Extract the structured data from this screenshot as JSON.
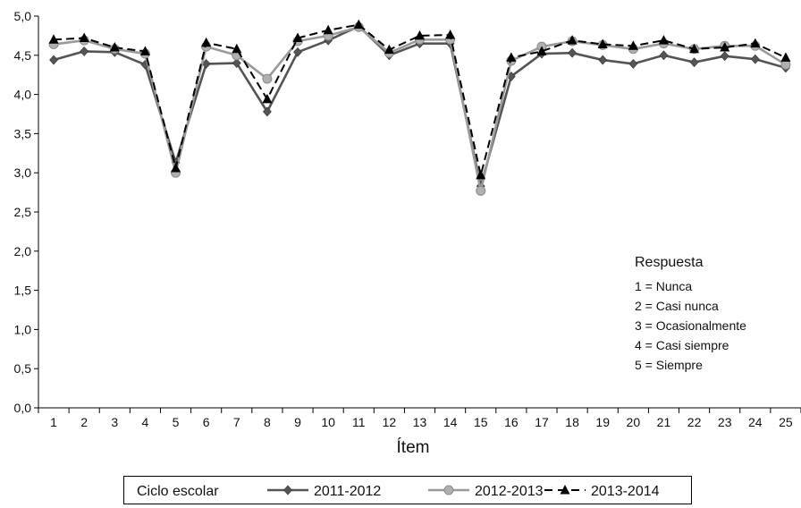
{
  "chart_data": {
    "type": "line",
    "x": [
      1,
      2,
      3,
      4,
      5,
      6,
      7,
      8,
      9,
      10,
      11,
      12,
      13,
      14,
      15,
      16,
      17,
      18,
      19,
      20,
      21,
      22,
      23,
      24,
      25
    ],
    "xlabel": "Ítem",
    "ylabel": "",
    "ylim": [
      0,
      5
    ],
    "yticks": [
      "0,0",
      "0,5",
      "1,0",
      "1,5",
      "2,0",
      "2,5",
      "3,0",
      "3,5",
      "4,0",
      "4,5",
      "5,0"
    ],
    "grid": false,
    "legend_title": "Ciclo escolar",
    "legend_position": "bottom",
    "series": [
      {
        "name": "2011-2012",
        "color": "#555555",
        "marker": "diamond",
        "dash": "solid",
        "values": [
          4.44,
          4.55,
          4.54,
          4.38,
          3.13,
          4.39,
          4.4,
          3.78,
          4.54,
          4.69,
          4.87,
          4.5,
          4.65,
          4.65,
          2.83,
          4.23,
          4.52,
          4.53,
          4.44,
          4.39,
          4.5,
          4.41,
          4.49,
          4.45,
          4.34
        ]
      },
      {
        "name": "2012-2013",
        "color": "#9a9a9a",
        "marker": "circle",
        "dash": "solid",
        "values": [
          4.64,
          4.69,
          4.58,
          4.52,
          3.0,
          4.61,
          4.5,
          4.2,
          4.68,
          4.75,
          4.86,
          4.53,
          4.7,
          4.7,
          2.77,
          4.43,
          4.61,
          4.68,
          4.63,
          4.58,
          4.65,
          4.58,
          4.62,
          4.62,
          4.38
        ]
      },
      {
        "name": "2013-2014",
        "color": "#000000",
        "marker": "triangle",
        "dash": "dashed",
        "values": [
          4.7,
          4.72,
          4.6,
          4.55,
          3.06,
          4.66,
          4.58,
          3.94,
          4.72,
          4.82,
          4.89,
          4.57,
          4.75,
          4.76,
          2.97,
          4.47,
          4.55,
          4.69,
          4.64,
          4.62,
          4.69,
          4.58,
          4.6,
          4.65,
          4.47
        ]
      }
    ],
    "annotation": {
      "title": "Respuesta",
      "lines": [
        "1 = Nunca",
        "2 = Casi nunca",
        "3 = Ocasionalmente",
        "4 = Casi siempre",
        "5 = Siempre"
      ]
    }
  }
}
